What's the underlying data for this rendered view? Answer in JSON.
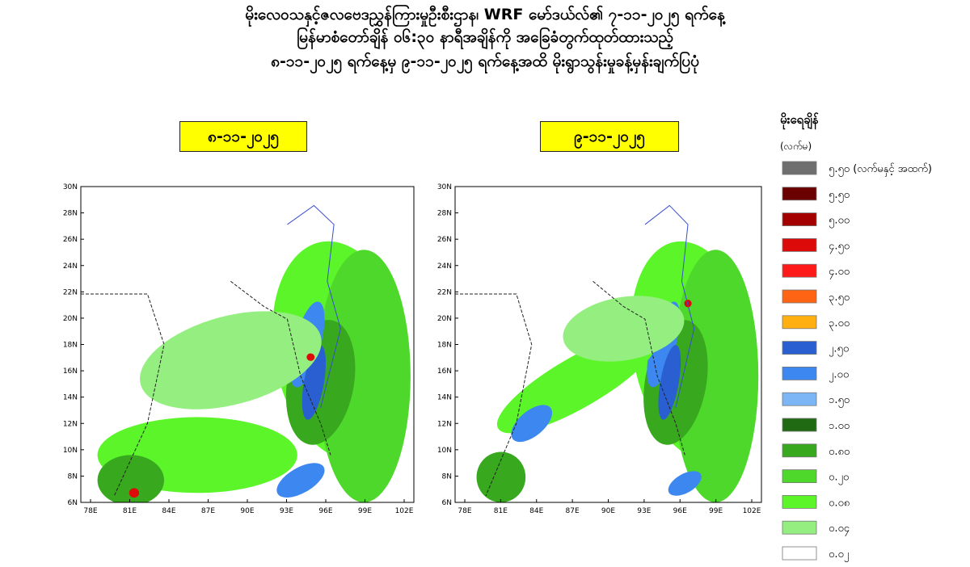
{
  "title_lines": [
    "မိုးလေဝသနှင့်ဇလဗေဒညွှန်ကြားမှုဦးစီးဌာန၊ WRF မော်ဒယ်လ်၏ ၇-၁၁-၂၀၂၅ ရက်နေ့",
    "မြန်မာစံတော်ချိန် ၀၆:၃၀ နာရီအချိန်ကို အခြေခံတွက်ထုတ်ထားသည့်",
    "၈-၁၁-၂၀၂၅ ရက်နေ့မှ ၉-၁၁-၂၀၂၅ ရက်နေ့အထိ မိုးရွာသွန်းမှုခန့်မှန်းချက်ပြပုံ"
  ],
  "maps": [
    {
      "date_label": "၈-၁၁-၂၀၂၅",
      "lat_labels": [
        "30N",
        "28N",
        "26N",
        "24N",
        "22N",
        "20N",
        "18N",
        "16N",
        "14N",
        "12N",
        "10N",
        "8N",
        "6N"
      ],
      "lon_labels": [
        "78E",
        "81E",
        "84E",
        "87E",
        "90E",
        "93E",
        "96E",
        "99E",
        "102E"
      ]
    },
    {
      "date_label": "၉-၁၁-၂၀၂၅",
      "lat_labels": [
        "30N",
        "28N",
        "26N",
        "24N",
        "22N",
        "20N",
        "18N",
        "16N",
        "14N",
        "12N",
        "10N",
        "8N",
        "6N"
      ],
      "lon_labels": [
        "78E",
        "81E",
        "84E",
        "87E",
        "90E",
        "93E",
        "96E",
        "99E",
        "102E"
      ]
    }
  ],
  "legend": {
    "title": "မိုးရေချိန်",
    "unit": "(လက်မ)",
    "items": [
      {
        "label": "၅.၅၀ (လက်မနှင့် အထက်)",
        "color": "#6e6e6e"
      },
      {
        "label": "၅.၅၀",
        "color": "#6b0000"
      },
      {
        "label": "၅.၀၀",
        "color": "#a50000"
      },
      {
        "label": "၄.၅၀",
        "color": "#dd0a0a"
      },
      {
        "label": "၄.၀၀",
        "color": "#ff1a1a"
      },
      {
        "label": "၃.၅၀",
        "color": "#ff6414"
      },
      {
        "label": "၃.၀၀",
        "color": "#ffb010"
      },
      {
        "label": "၂.၅၀",
        "color": "#2a5fd2"
      },
      {
        "label": "၂.၀၀",
        "color": "#3c88f0"
      },
      {
        "label": "၁.၅၀",
        "color": "#7db6f6"
      },
      {
        "label": "၁.၀၀",
        "color": "#1f6a12"
      },
      {
        "label": "၀.၈၀",
        "color": "#38a81e"
      },
      {
        "label": "၀.၂၀",
        "color": "#4ed82c"
      },
      {
        "label": "၀.၀၈",
        "color": "#5cf52a"
      },
      {
        "label": "၀.၀၄",
        "color": "#94ef80"
      },
      {
        "label": "၀.၀၂",
        "color": "#ffffff"
      }
    ]
  }
}
